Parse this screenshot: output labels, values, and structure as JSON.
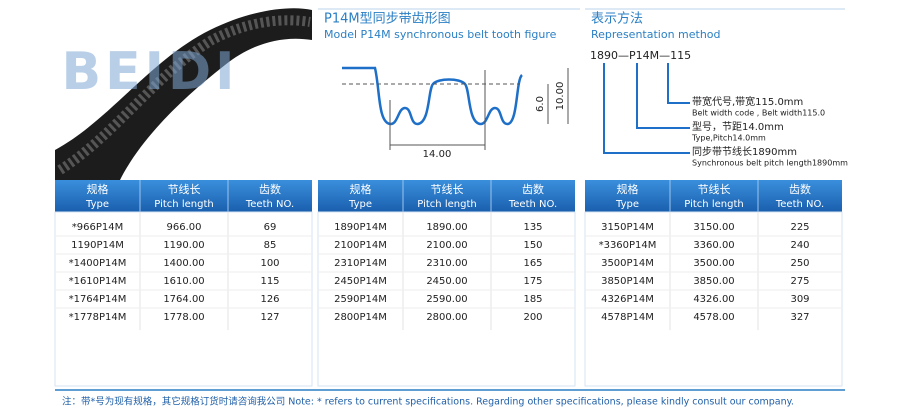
{
  "watermark": "BEIDI",
  "tooth_figure": {
    "title": "P14M型同步带齿形图",
    "subtitle": "Model P14M synchronous belt tooth figure",
    "pitch": "14.00",
    "tooth_height": "6.0",
    "belt_height": "10.00"
  },
  "representation": {
    "title": "表示方法",
    "subtitle": "Representation method",
    "code": "1890—P14M—115",
    "items": [
      {
        "label": "带宽代号,带宽115.0mm",
        "sub": "Belt width code , Belt width115.0"
      },
      {
        "label": "型号，节距14.0mm",
        "sub": "Type,Pitch14.0mm"
      },
      {
        "label": "同步带节线长1890mm",
        "sub": "Synchronous belt pitch length1890mm"
      }
    ]
  },
  "columns": [
    {
      "zh": "规格",
      "en": "Type"
    },
    {
      "zh": "节线长",
      "en": "Pitch length"
    },
    {
      "zh": "齿数",
      "en": "Teeth NO."
    }
  ],
  "tables": [
    {
      "rows": [
        [
          "*966P14M",
          "966.00",
          "69"
        ],
        [
          "1190P14M",
          "1190.00",
          "85"
        ],
        [
          "*1400P14M",
          "1400.00",
          "100"
        ],
        [
          "*1610P14M",
          "1610.00",
          "115"
        ],
        [
          "*1764P14M",
          "1764.00",
          "126"
        ],
        [
          "*1778P14M",
          "1778.00",
          "127"
        ]
      ]
    },
    {
      "rows": [
        [
          "1890P14M",
          "1890.00",
          "135"
        ],
        [
          "2100P14M",
          "2100.00",
          "150"
        ],
        [
          "2310P14M",
          "2310.00",
          "165"
        ],
        [
          "2450P14M",
          "2450.00",
          "175"
        ],
        [
          "2590P14M",
          "2590.00",
          "185"
        ],
        [
          "2800P14M",
          "2800.00",
          "200"
        ]
      ]
    },
    {
      "rows": [
        [
          "3150P14M",
          "3150.00",
          "225"
        ],
        [
          "*3360P14M",
          "3360.00",
          "240"
        ],
        [
          "3500P14M",
          "3500.00",
          "250"
        ],
        [
          "3850P14M",
          "3850.00",
          "275"
        ],
        [
          "4326P14M",
          "4326.00",
          "309"
        ],
        [
          "4578P14M",
          "4578.00",
          "327"
        ]
      ]
    }
  ],
  "note": "注：带*号为现有规格，其它规格订货时请咨询我公司  Note: * refers to current specifications.  Regarding other specifications, please kindly consult our company."
}
